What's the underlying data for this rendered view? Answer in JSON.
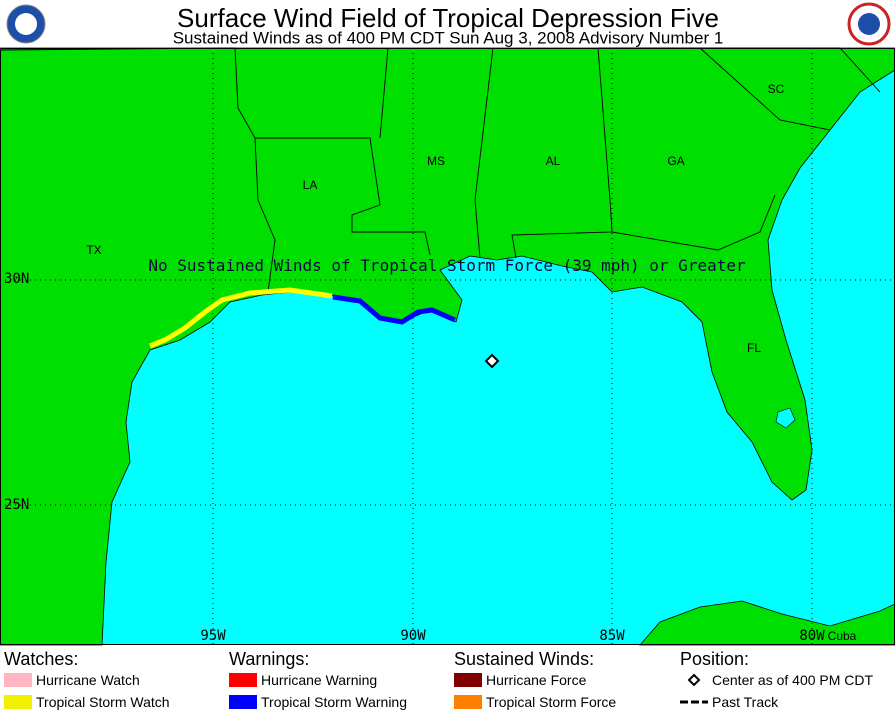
{
  "header": {
    "title": "Surface Wind Field of Tropical Depression Five",
    "subtitle": "Sustained Winds as of 400 PM CDT Sun Aug 3, 2008    Advisory Number 1"
  },
  "map": {
    "lat_labels": [
      "30N",
      "25N"
    ],
    "lon_labels": [
      "95W",
      "90W",
      "85W",
      "80W"
    ],
    "region_labels": [
      "TX",
      "LA",
      "MS",
      "AL",
      "GA",
      "SC",
      "FL",
      "Cuba"
    ],
    "message": "No Sustained Winds of Tropical Storm Force (39 mph) or Greater"
  },
  "legend": [
    {
      "title": "Watches:",
      "items": [
        {
          "label": "Hurricane Watch",
          "color": "#ffb6c1"
        },
        {
          "label": "Tropical Storm Watch",
          "color": "#f0f000"
        }
      ]
    },
    {
      "title": "Warnings:",
      "items": [
        {
          "label": "Hurricane Warning",
          "color": "#ff0000"
        },
        {
          "label": "Tropical Storm Warning",
          "color": "#0000ff"
        }
      ]
    },
    {
      "title": "Sustained Winds:",
      "items": [
        {
          "label": "Hurricane Force",
          "color": "#800000"
        },
        {
          "label": "Tropical Storm Force",
          "color": "#ff8000"
        }
      ]
    },
    {
      "title": "Position:",
      "items": [
        {
          "label": "Center as of 400 PM CDT",
          "symbol": "diamond"
        },
        {
          "label": "Past Track",
          "symbol": "dash"
        }
      ]
    }
  ]
}
